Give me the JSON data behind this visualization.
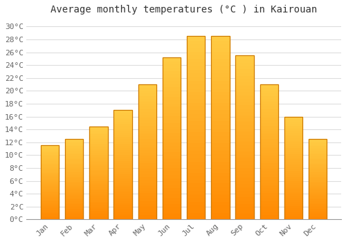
{
  "title": "Average monthly temperatures (°C ) in Kairouan",
  "months": [
    "Jan",
    "Feb",
    "Mar",
    "Apr",
    "May",
    "Jun",
    "Jul",
    "Aug",
    "Sep",
    "Oct",
    "Nov",
    "Dec"
  ],
  "temperatures": [
    11.5,
    12.5,
    14.5,
    17.0,
    21.0,
    25.2,
    28.5,
    28.5,
    25.5,
    21.0,
    16.0,
    12.5
  ],
  "bar_color_top": "#FFCC44",
  "bar_color_bottom": "#FF8800",
  "bar_edge_color": "#CC7700",
  "ylim": [
    0,
    31
  ],
  "ytick_step": 2,
  "background_color": "#ffffff",
  "grid_color": "#dddddd",
  "title_fontsize": 10,
  "tick_fontsize": 8,
  "font_family": "monospace"
}
